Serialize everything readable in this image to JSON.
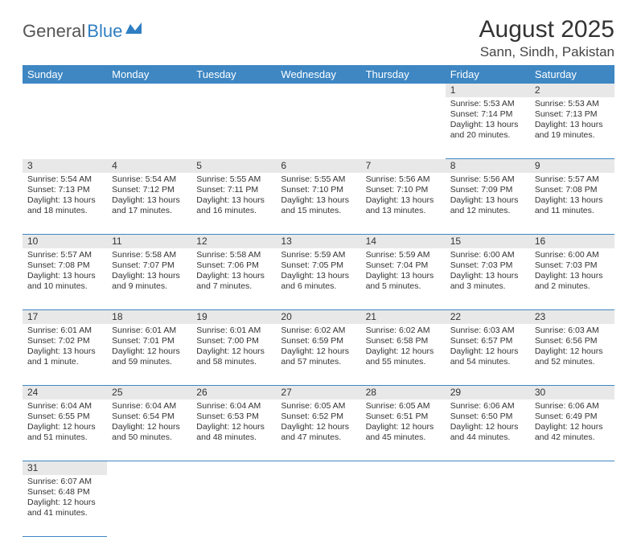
{
  "logo": {
    "text1": "General",
    "text2": "Blue"
  },
  "title": "August 2025",
  "location": "Sann, Sindh, Pakistan",
  "colors": {
    "header_bg": "#3e87c3",
    "header_text": "#ffffff",
    "daynum_bg": "#e8e8e8",
    "row_divider": "#3e87c3",
    "body_text": "#333333",
    "logo_blue": "#2f7fc2"
  },
  "day_headers": [
    "Sunday",
    "Monday",
    "Tuesday",
    "Wednesday",
    "Thursday",
    "Friday",
    "Saturday"
  ],
  "weeks": [
    {
      "nums": [
        "",
        "",
        "",
        "",
        "",
        "1",
        "2"
      ],
      "cells": [
        null,
        null,
        null,
        null,
        null,
        {
          "sunrise": "Sunrise: 5:53 AM",
          "sunset": "Sunset: 7:14 PM",
          "daylight": "Daylight: 13 hours and 20 minutes."
        },
        {
          "sunrise": "Sunrise: 5:53 AM",
          "sunset": "Sunset: 7:13 PM",
          "daylight": "Daylight: 13 hours and 19 minutes."
        }
      ]
    },
    {
      "nums": [
        "3",
        "4",
        "5",
        "6",
        "7",
        "8",
        "9"
      ],
      "cells": [
        {
          "sunrise": "Sunrise: 5:54 AM",
          "sunset": "Sunset: 7:13 PM",
          "daylight": "Daylight: 13 hours and 18 minutes."
        },
        {
          "sunrise": "Sunrise: 5:54 AM",
          "sunset": "Sunset: 7:12 PM",
          "daylight": "Daylight: 13 hours and 17 minutes."
        },
        {
          "sunrise": "Sunrise: 5:55 AM",
          "sunset": "Sunset: 7:11 PM",
          "daylight": "Daylight: 13 hours and 16 minutes."
        },
        {
          "sunrise": "Sunrise: 5:55 AM",
          "sunset": "Sunset: 7:10 PM",
          "daylight": "Daylight: 13 hours and 15 minutes."
        },
        {
          "sunrise": "Sunrise: 5:56 AM",
          "sunset": "Sunset: 7:10 PM",
          "daylight": "Daylight: 13 hours and 13 minutes."
        },
        {
          "sunrise": "Sunrise: 5:56 AM",
          "sunset": "Sunset: 7:09 PM",
          "daylight": "Daylight: 13 hours and 12 minutes."
        },
        {
          "sunrise": "Sunrise: 5:57 AM",
          "sunset": "Sunset: 7:08 PM",
          "daylight": "Daylight: 13 hours and 11 minutes."
        }
      ]
    },
    {
      "nums": [
        "10",
        "11",
        "12",
        "13",
        "14",
        "15",
        "16"
      ],
      "cells": [
        {
          "sunrise": "Sunrise: 5:57 AM",
          "sunset": "Sunset: 7:08 PM",
          "daylight": "Daylight: 13 hours and 10 minutes."
        },
        {
          "sunrise": "Sunrise: 5:58 AM",
          "sunset": "Sunset: 7:07 PM",
          "daylight": "Daylight: 13 hours and 9 minutes."
        },
        {
          "sunrise": "Sunrise: 5:58 AM",
          "sunset": "Sunset: 7:06 PM",
          "daylight": "Daylight: 13 hours and 7 minutes."
        },
        {
          "sunrise": "Sunrise: 5:59 AM",
          "sunset": "Sunset: 7:05 PM",
          "daylight": "Daylight: 13 hours and 6 minutes."
        },
        {
          "sunrise": "Sunrise: 5:59 AM",
          "sunset": "Sunset: 7:04 PM",
          "daylight": "Daylight: 13 hours and 5 minutes."
        },
        {
          "sunrise": "Sunrise: 6:00 AM",
          "sunset": "Sunset: 7:03 PM",
          "daylight": "Daylight: 13 hours and 3 minutes."
        },
        {
          "sunrise": "Sunrise: 6:00 AM",
          "sunset": "Sunset: 7:03 PM",
          "daylight": "Daylight: 13 hours and 2 minutes."
        }
      ]
    },
    {
      "nums": [
        "17",
        "18",
        "19",
        "20",
        "21",
        "22",
        "23"
      ],
      "cells": [
        {
          "sunrise": "Sunrise: 6:01 AM",
          "sunset": "Sunset: 7:02 PM",
          "daylight": "Daylight: 13 hours and 1 minute."
        },
        {
          "sunrise": "Sunrise: 6:01 AM",
          "sunset": "Sunset: 7:01 PM",
          "daylight": "Daylight: 12 hours and 59 minutes."
        },
        {
          "sunrise": "Sunrise: 6:01 AM",
          "sunset": "Sunset: 7:00 PM",
          "daylight": "Daylight: 12 hours and 58 minutes."
        },
        {
          "sunrise": "Sunrise: 6:02 AM",
          "sunset": "Sunset: 6:59 PM",
          "daylight": "Daylight: 12 hours and 57 minutes."
        },
        {
          "sunrise": "Sunrise: 6:02 AM",
          "sunset": "Sunset: 6:58 PM",
          "daylight": "Daylight: 12 hours and 55 minutes."
        },
        {
          "sunrise": "Sunrise: 6:03 AM",
          "sunset": "Sunset: 6:57 PM",
          "daylight": "Daylight: 12 hours and 54 minutes."
        },
        {
          "sunrise": "Sunrise: 6:03 AM",
          "sunset": "Sunset: 6:56 PM",
          "daylight": "Daylight: 12 hours and 52 minutes."
        }
      ]
    },
    {
      "nums": [
        "24",
        "25",
        "26",
        "27",
        "28",
        "29",
        "30"
      ],
      "cells": [
        {
          "sunrise": "Sunrise: 6:04 AM",
          "sunset": "Sunset: 6:55 PM",
          "daylight": "Daylight: 12 hours and 51 minutes."
        },
        {
          "sunrise": "Sunrise: 6:04 AM",
          "sunset": "Sunset: 6:54 PM",
          "daylight": "Daylight: 12 hours and 50 minutes."
        },
        {
          "sunrise": "Sunrise: 6:04 AM",
          "sunset": "Sunset: 6:53 PM",
          "daylight": "Daylight: 12 hours and 48 minutes."
        },
        {
          "sunrise": "Sunrise: 6:05 AM",
          "sunset": "Sunset: 6:52 PM",
          "daylight": "Daylight: 12 hours and 47 minutes."
        },
        {
          "sunrise": "Sunrise: 6:05 AM",
          "sunset": "Sunset: 6:51 PM",
          "daylight": "Daylight: 12 hours and 45 minutes."
        },
        {
          "sunrise": "Sunrise: 6:06 AM",
          "sunset": "Sunset: 6:50 PM",
          "daylight": "Daylight: 12 hours and 44 minutes."
        },
        {
          "sunrise": "Sunrise: 6:06 AM",
          "sunset": "Sunset: 6:49 PM",
          "daylight": "Daylight: 12 hours and 42 minutes."
        }
      ]
    },
    {
      "nums": [
        "31",
        "",
        "",
        "",
        "",
        "",
        ""
      ],
      "cells": [
        {
          "sunrise": "Sunrise: 6:07 AM",
          "sunset": "Sunset: 6:48 PM",
          "daylight": "Daylight: 12 hours and 41 minutes."
        },
        null,
        null,
        null,
        null,
        null,
        null
      ]
    }
  ]
}
